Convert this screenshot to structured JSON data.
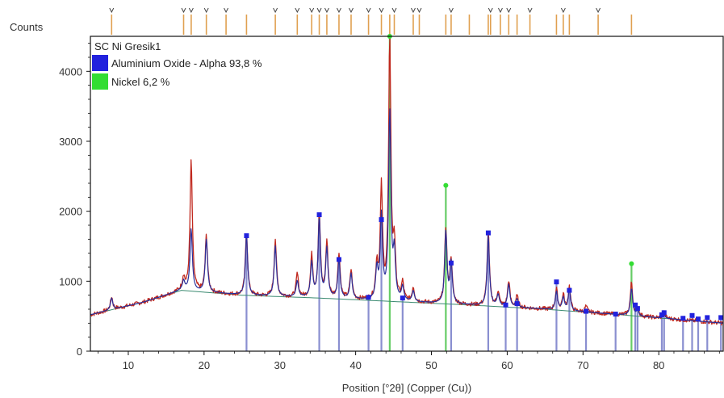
{
  "chart_data": {
    "type": "line",
    "title": "SC Ni Gresik1",
    "ylabel": "Counts",
    "xlabel": "Position [°2θ] (Copper (Cu))",
    "xlim": [
      5,
      88.5
    ],
    "ylim": [
      0,
      4500
    ],
    "x_ticks": [
      10,
      20,
      30,
      40,
      50,
      60,
      70,
      80
    ],
    "y_ticks": [
      0,
      1000,
      2000,
      3000,
      4000
    ],
    "grid": false,
    "legend_position": "top-left",
    "background_points": [
      [
        5,
        520
      ],
      [
        12,
        700
      ],
      [
        17,
        870
      ],
      [
        25,
        800
      ],
      [
        35,
        760
      ],
      [
        45,
        710
      ],
      [
        55,
        660
      ],
      [
        65,
        600
      ],
      [
        75,
        520
      ],
      [
        88.5,
        400
      ]
    ],
    "series": [
      {
        "name": "",
        "color": "#c0281e",
        "role": "observed pattern",
        "peaks": [
          {
            "x": 7.8,
            "y": 780
          },
          {
            "x": 17.3,
            "y": 1050
          },
          {
            "x": 18.3,
            "y": 2720
          },
          {
            "x": 20.3,
            "y": 1650
          },
          {
            "x": 25.6,
            "y": 1700
          },
          {
            "x": 29.4,
            "y": 1600
          },
          {
            "x": 32.3,
            "y": 1100
          },
          {
            "x": 34.2,
            "y": 1350
          },
          {
            "x": 35.2,
            "y": 1950
          },
          {
            "x": 36.2,
            "y": 1550
          },
          {
            "x": 37.8,
            "y": 1400
          },
          {
            "x": 39.4,
            "y": 1150
          },
          {
            "x": 42.8,
            "y": 1200
          },
          {
            "x": 43.4,
            "y": 2300
          },
          {
            "x": 44.5,
            "y": 4450
          },
          {
            "x": 45.1,
            "y": 1450
          },
          {
            "x": 46.2,
            "y": 950
          },
          {
            "x": 47.6,
            "y": 900
          },
          {
            "x": 51.9,
            "y": 1750
          },
          {
            "x": 52.6,
            "y": 1300
          },
          {
            "x": 57.5,
            "y": 1700
          },
          {
            "x": 58.8,
            "y": 850
          },
          {
            "x": 60.2,
            "y": 1000
          },
          {
            "x": 61.3,
            "y": 780
          },
          {
            "x": 66.5,
            "y": 880
          },
          {
            "x": 67.4,
            "y": 800
          },
          {
            "x": 68.2,
            "y": 920
          },
          {
            "x": 70.4,
            "y": 640
          },
          {
            "x": 76.4,
            "y": 980
          },
          {
            "x": 77.2,
            "y": 620
          },
          {
            "x": 80.7,
            "y": 560
          }
        ]
      },
      {
        "name": "",
        "color": "#2a2f9a",
        "role": "calculated pattern",
        "peaks": [
          {
            "x": 7.8,
            "y": 760
          },
          {
            "x": 17.3,
            "y": 1000
          },
          {
            "x": 18.3,
            "y": 1750
          },
          {
            "x": 20.3,
            "y": 1600
          },
          {
            "x": 25.6,
            "y": 1650
          },
          {
            "x": 29.4,
            "y": 1500
          },
          {
            "x": 32.3,
            "y": 1000
          },
          {
            "x": 34.2,
            "y": 1250
          },
          {
            "x": 35.2,
            "y": 1900
          },
          {
            "x": 36.2,
            "y": 1450
          },
          {
            "x": 37.8,
            "y": 1300
          },
          {
            "x": 39.4,
            "y": 1100
          },
          {
            "x": 42.8,
            "y": 1150
          },
          {
            "x": 43.4,
            "y": 1900
          },
          {
            "x": 44.5,
            "y": 3400
          },
          {
            "x": 45.1,
            "y": 1350
          },
          {
            "x": 46.2,
            "y": 900
          },
          {
            "x": 47.6,
            "y": 850
          },
          {
            "x": 51.9,
            "y": 1700
          },
          {
            "x": 52.6,
            "y": 1250
          },
          {
            "x": 57.5,
            "y": 1650
          },
          {
            "x": 58.8,
            "y": 800
          },
          {
            "x": 60.2,
            "y": 950
          },
          {
            "x": 61.3,
            "y": 740
          },
          {
            "x": 66.5,
            "y": 850
          },
          {
            "x": 67.4,
            "y": 760
          },
          {
            "x": 68.2,
            "y": 880
          },
          {
            "x": 70.4,
            "y": 600
          },
          {
            "x": 76.4,
            "y": 900
          },
          {
            "x": 77.2,
            "y": 580
          },
          {
            "x": 80.7,
            "y": 520
          }
        ]
      }
    ],
    "reference_phases": [
      {
        "name": "Aluminium Oxide - Alpha 93,8 %",
        "color": "#2222dd",
        "line_color": "#8a8fd0",
        "marker": "square",
        "sticks": [
          [
            25.6,
            1650
          ],
          [
            35.2,
            1950
          ],
          [
            37.8,
            1310
          ],
          [
            41.7,
            770
          ],
          [
            43.4,
            1880
          ],
          [
            46.2,
            760
          ],
          [
            52.6,
            1260
          ],
          [
            57.5,
            1690
          ],
          [
            59.8,
            660
          ],
          [
            61.3,
            680
          ],
          [
            66.5,
            990
          ],
          [
            68.2,
            870
          ],
          [
            70.4,
            570
          ],
          [
            74.3,
            530
          ],
          [
            76.9,
            660
          ],
          [
            77.2,
            610
          ],
          [
            80.4,
            520
          ],
          [
            80.7,
            550
          ],
          [
            83.2,
            470
          ],
          [
            84.4,
            510
          ],
          [
            85.2,
            460
          ],
          [
            86.4,
            480
          ],
          [
            88.2,
            480
          ]
        ]
      },
      {
        "name": "Nickel 6,2 %",
        "color": "#33dd33",
        "line_color": "#66cc66",
        "marker": "circle",
        "sticks": [
          [
            44.5,
            4500
          ],
          [
            51.9,
            2370
          ],
          [
            76.4,
            1250
          ]
        ]
      }
    ],
    "top_tick_marks": [
      7.8,
      17.3,
      18.3,
      20.3,
      22.9,
      25.6,
      29.4,
      32.3,
      34.2,
      35.2,
      36.2,
      37.8,
      39.4,
      41.7,
      43.4,
      44.5,
      45.1,
      47.6,
      48.4,
      51.9,
      52.6,
      55.0,
      57.5,
      57.8,
      59.1,
      60.2,
      61.3,
      63.0,
      66.5,
      67.4,
      68.2,
      72.0,
      76.4
    ],
    "top_tick_chevrons": [
      7.8,
      17.3,
      18.3,
      20.3,
      22.9,
      29.4,
      32.3,
      34.2,
      35.2,
      36.2,
      37.8,
      39.4,
      41.7,
      43.4,
      45.1,
      47.6,
      48.4,
      52.6,
      57.8,
      59.1,
      60.2,
      63.0,
      67.4,
      72.0
    ]
  }
}
